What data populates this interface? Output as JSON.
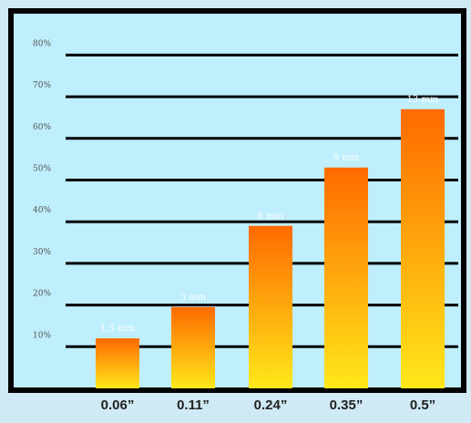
{
  "chart_data": {
    "type": "bar",
    "categories": [
      "0.06”",
      "0.11”",
      "0.24”",
      "0.35”",
      "0.5”"
    ],
    "data_labels": [
      "1,5 mm",
      "3 mm",
      "6 mm",
      "9 mm",
      "13 mm"
    ],
    "values": [
      12,
      19.5,
      39,
      53,
      67
    ],
    "y_ticks": [
      10,
      20,
      30,
      40,
      50,
      60,
      70,
      80
    ],
    "y_tick_labels": [
      "10%",
      "20%",
      "30%",
      "40%",
      "50%",
      "60%",
      "70%",
      "80%"
    ],
    "ylim": [
      0,
      80
    ],
    "grid": true,
    "title": "",
    "xlabel": "",
    "ylabel": ""
  },
  "colors": {
    "page_background": "#cfeaf4",
    "plot_background": "#bfeefc",
    "frame": "#000000",
    "gridline": "#000000",
    "bar_top": "#ff6a00",
    "bar_bottom": "#ffe81a"
  }
}
